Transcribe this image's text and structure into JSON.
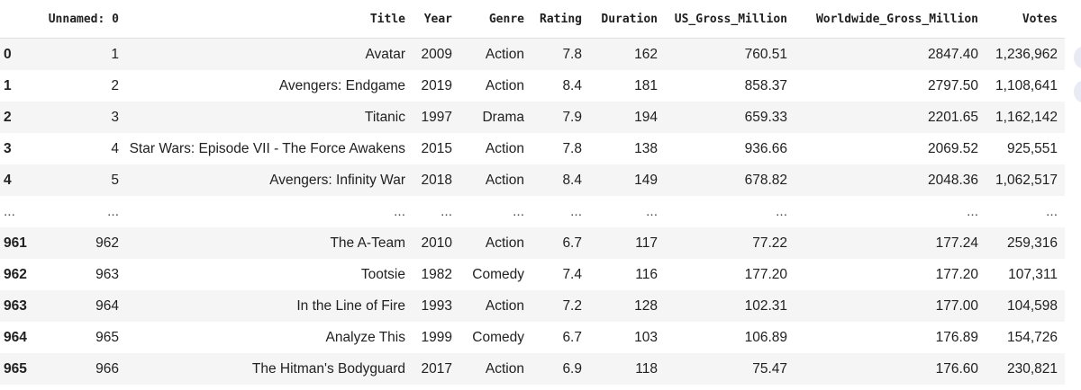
{
  "dataframe": {
    "columns": [
      "Unnamed: 0",
      "Title",
      "Year",
      "Genre",
      "Rating",
      "Duration",
      "US_Gross_Million",
      "Worldwide_Gross_Million",
      "Votes"
    ],
    "rows": [
      {
        "index": "0",
        "cells": [
          "1",
          "Avatar",
          "2009",
          "Action",
          "7.8",
          "162",
          "760.51",
          "2847.40",
          "1,236,962"
        ]
      },
      {
        "index": "1",
        "cells": [
          "2",
          "Avengers: Endgame",
          "2019",
          "Action",
          "8.4",
          "181",
          "858.37",
          "2797.50",
          "1,108,641"
        ]
      },
      {
        "index": "2",
        "cells": [
          "3",
          "Titanic",
          "1997",
          "Drama",
          "7.9",
          "194",
          "659.33",
          "2201.65",
          "1,162,142"
        ]
      },
      {
        "index": "3",
        "cells": [
          "4",
          "Star Wars: Episode VII - The Force Awakens",
          "2015",
          "Action",
          "7.8",
          "138",
          "936.66",
          "2069.52",
          "925,551"
        ]
      },
      {
        "index": "4",
        "cells": [
          "5",
          "Avengers: Infinity War",
          "2018",
          "Action",
          "8.4",
          "149",
          "678.82",
          "2048.36",
          "1,062,517"
        ]
      },
      {
        "index": "...",
        "cells": [
          "...",
          "...",
          "...",
          "...",
          "...",
          "...",
          "...",
          "...",
          "..."
        ]
      },
      {
        "index": "961",
        "cells": [
          "962",
          "The A-Team",
          "2010",
          "Action",
          "6.7",
          "117",
          "77.22",
          "177.24",
          "259,316"
        ]
      },
      {
        "index": "962",
        "cells": [
          "963",
          "Tootsie",
          "1982",
          "Comedy",
          "7.4",
          "116",
          "177.20",
          "177.20",
          "107,311"
        ]
      },
      {
        "index": "963",
        "cells": [
          "964",
          "In the Line of Fire",
          "1993",
          "Action",
          "7.2",
          "128",
          "102.31",
          "177.00",
          "104,598"
        ]
      },
      {
        "index": "964",
        "cells": [
          "965",
          "Analyze This",
          "1999",
          "Comedy",
          "6.7",
          "103",
          "106.89",
          "176.89",
          "154,726"
        ]
      },
      {
        "index": "965",
        "cells": [
          "966",
          "The Hitman's Bodyguard",
          "2017",
          "Action",
          "6.9",
          "118",
          "75.47",
          "176.60",
          "230,821"
        ]
      }
    ]
  }
}
